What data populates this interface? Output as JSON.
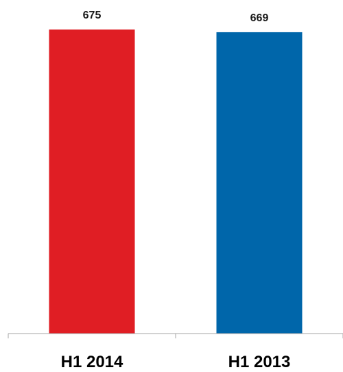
{
  "chart_data": {
    "type": "bar",
    "categories": [
      "H1 2014",
      "H1 2013"
    ],
    "values": [
      675,
      669
    ],
    "data_labels": [
      "675",
      "669"
    ],
    "colors": [
      "#e01e24",
      "#0066aa"
    ],
    "title": "",
    "xlabel": "",
    "ylabel": "",
    "ylim": [
      0,
      675
    ],
    "grid": false,
    "legend": "none"
  }
}
